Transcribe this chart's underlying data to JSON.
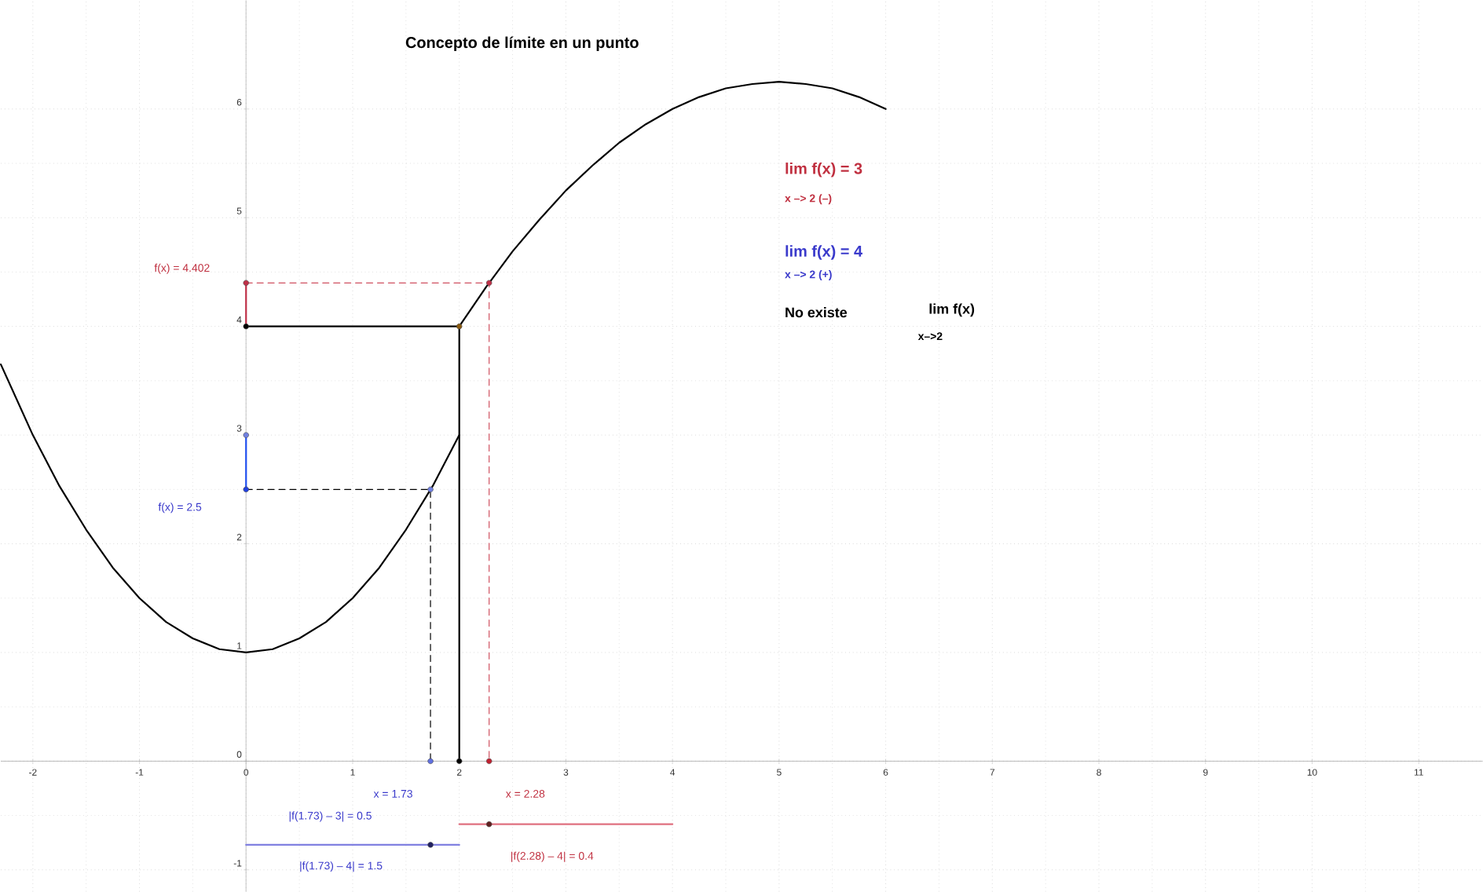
{
  "chart_data": {
    "type": "line",
    "title": "Concepto de límite en un punto",
    "xlim": [
      -2.3,
      11.6
    ],
    "ylim": [
      -1.2,
      7.0
    ],
    "xticks": [
      -2,
      -1,
      0,
      1,
      2,
      3,
      4,
      5,
      6,
      7,
      8,
      9,
      10,
      11
    ],
    "yticks": [
      -1,
      0,
      1,
      2,
      3,
      4,
      5,
      6
    ],
    "grid": true,
    "series": [
      {
        "color": "#000000",
        "line_style": "solid",
        "marker": "none",
        "x": [
          -2.3,
          -2,
          -1.75,
          -1.5,
          -1.25,
          -1,
          -0.75,
          -0.5,
          -0.25,
          0,
          0.25,
          0.5,
          0.75,
          1,
          1.25,
          1.5,
          1.75,
          2
        ],
        "values": [
          3.65,
          3,
          2.53,
          2.13,
          1.78,
          1.5,
          1.28,
          1.13,
          1.03,
          1,
          1.03,
          1.13,
          1.28,
          1.5,
          1.78,
          2.13,
          2.53,
          3
        ]
      },
      {
        "color": "#000000",
        "line_style": "solid",
        "marker": "none",
        "x": [
          2,
          2.25,
          2.5,
          2.75,
          3,
          3.25,
          3.5,
          3.75,
          4,
          4.25,
          4.5,
          4.75,
          5,
          5.25,
          5.5,
          5.75,
          6
        ],
        "values": [
          4,
          4.36,
          4.69,
          4.98,
          5.25,
          5.48,
          5.69,
          5.86,
          6,
          6.11,
          6.19,
          6.23,
          6.25,
          6.23,
          6.19,
          6.11,
          6
        ]
      },
      {
        "color": "#d05060",
        "line_style": "dashed",
        "marker": "none",
        "x": [
          0,
          2.28,
          2.28
        ],
        "values": [
          4.4,
          4.4,
          0
        ]
      },
      {
        "color": "#000000",
        "line_style": "dashed",
        "marker": "none",
        "x": [
          0,
          1.73,
          1.73
        ],
        "values": [
          2.5,
          2.5,
          0
        ]
      },
      {
        "color": "#000000",
        "line_style": "solid",
        "marker": "none",
        "x": [
          0,
          2,
          2
        ],
        "values": [
          4,
          4,
          0
        ]
      },
      {
        "color": "#c03048",
        "line_style": "solid",
        "marker": "none",
        "x": [
          0,
          0
        ],
        "values": [
          4,
          4.4
        ]
      },
      {
        "color": "#2050f0",
        "line_style": "solid",
        "marker": "none",
        "x": [
          0,
          0
        ],
        "values": [
          2.5,
          3
        ]
      },
      {
        "color": "#8080e0",
        "line_style": "solid",
        "marker": "none",
        "x": [
          0,
          2
        ],
        "values": [
          -0.77,
          -0.77
        ]
      },
      {
        "color": "#e07080",
        "line_style": "solid",
        "marker": "none",
        "x": [
          2,
          4
        ],
        "values": [
          -0.58,
          -0.58
        ]
      },
      {
        "type": "scatter",
        "marker": "circle",
        "x": [
          0,
          2.28,
          0,
          2,
          0,
          0,
          1.73,
          1.73,
          2,
          2.28,
          1.73,
          2.28
        ],
        "values": [
          4.4,
          4.4,
          4,
          4,
          3,
          2.5,
          2.5,
          0,
          0,
          0,
          -0.77,
          -0.58
        ],
        "colors": [
          "#c03048",
          "#c03048",
          "#000000",
          "#8a5a10",
          "#7080e0",
          "#2040e0",
          "#7080e0",
          "#6070e0",
          "#000000",
          "#c02030",
          "#202060",
          "#602020"
        ]
      }
    ],
    "annotations": [
      "f(x) =  4.402",
      "f(x) =  2.5",
      "x =  1.73",
      "x =  2.28",
      "|f(1.73) – 3| = 0.5",
      "|f(1.73) – 4| = 1.5",
      "|f(2.28) – 4| =  0.4",
      "lim f(x) =  3",
      "x –> 2 (–)",
      "lim f(x) =  4",
      "x –> 2 (+)",
      "No existe",
      "lim f(x)",
      "x–>2"
    ]
  }
}
